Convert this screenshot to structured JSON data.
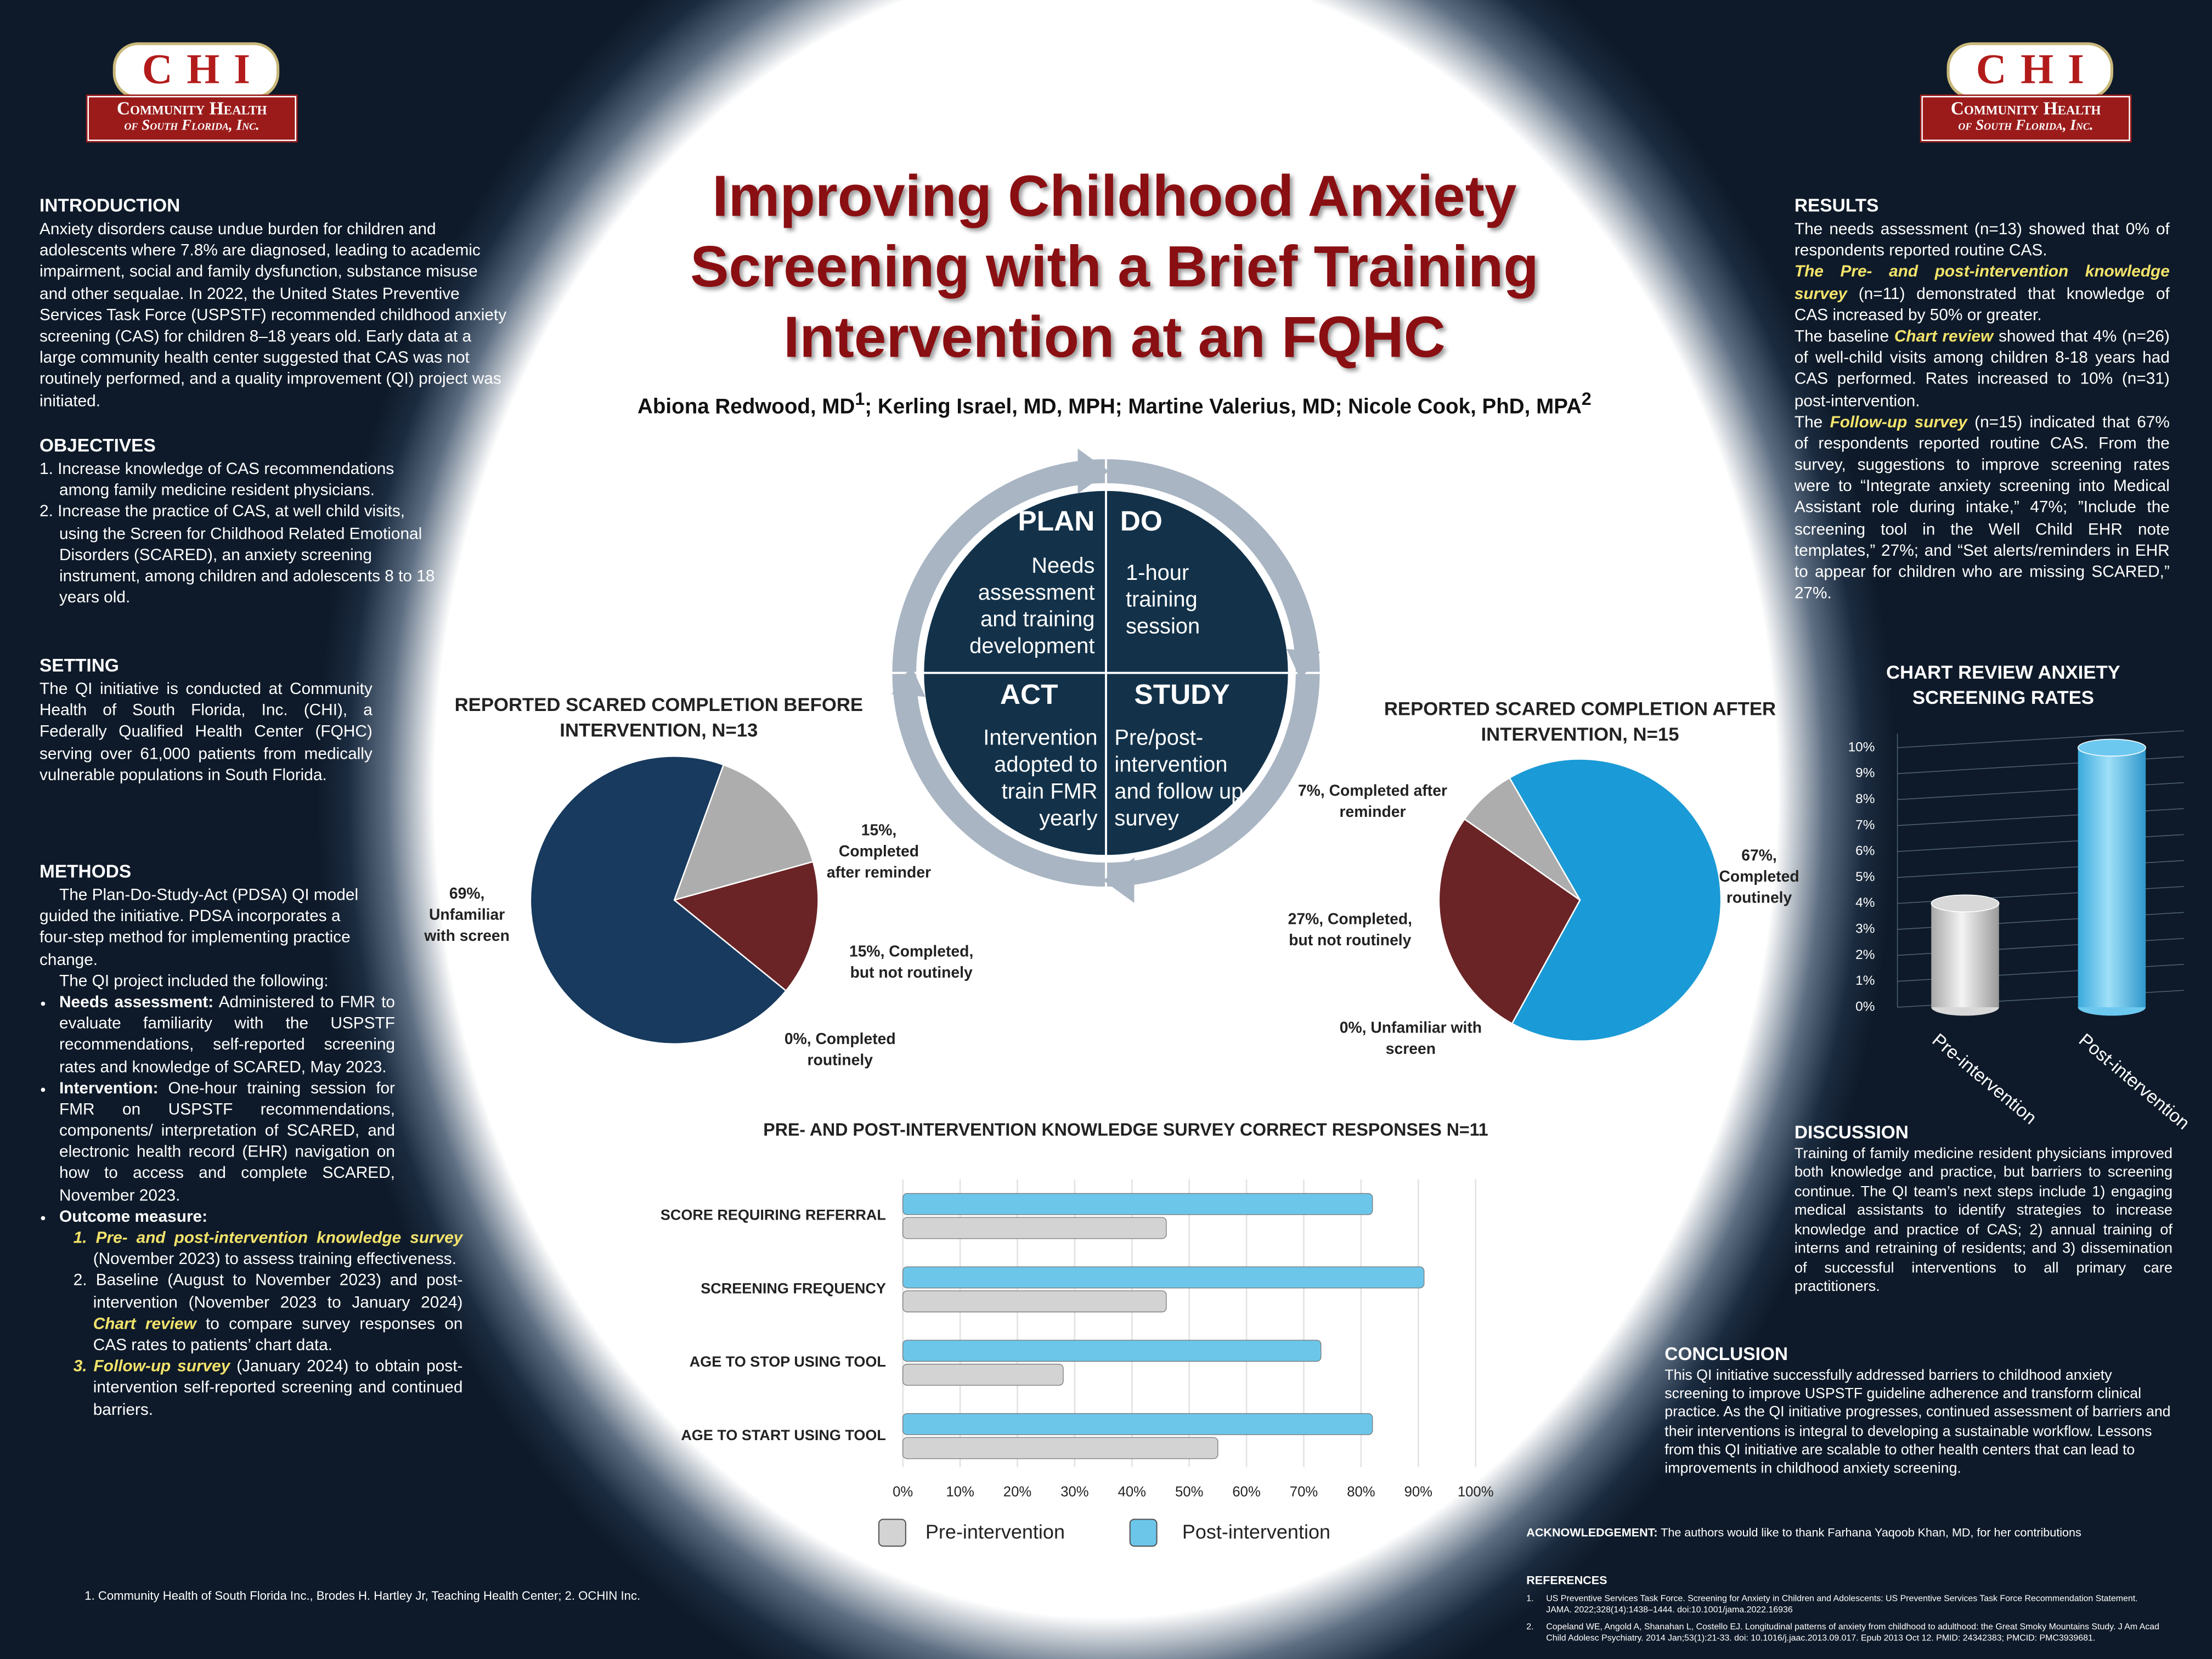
{
  "logo": {
    "initials": "CHI",
    "name": "Community Health",
    "place": "of South Florida, Inc."
  },
  "header": {
    "title": "Improving Childhood Anxiety Screening with a Brief Training Intervention at an FQHC",
    "authors": [
      {
        "text": "Abiona Redwood, MD",
        "sup": "1"
      },
      {
        "text": "; Kerling Israel, MD, MPH; Martine Valerius, MD; Nicole Cook, PhD, MPA",
        "sup": "2"
      }
    ]
  },
  "introduction": {
    "heading": "INTRODUCTION",
    "text": "Anxiety disorders cause undue burden for children and adolescents where 7.8% are diagnosed, leading to academic impairment, social and family dysfunction, substance misuse and other sequalae. In 2022, the United States Preventive Services Task Force (USPSTF) recommended childhood anxiety screening (CAS) for children 8–18 years old. Early data at a large community health center suggested that CAS was not routinely performed, and a quality improvement (QI) project was initiated."
  },
  "objectives": {
    "heading": "OBJECTIVES",
    "items": [
      "1. Increase knowledge of CAS recommendations among family medicine resident physicians.",
      "2. Increase the practice of CAS, at well child visits, using the Screen for Childhood Related Emotional Disorders (SCARED), an anxiety screening instrument, among children and adolescents 8 to 18 years old."
    ]
  },
  "setting": {
    "heading": "SETTING",
    "text": "The QI initiative is conducted at Community Health of South Florida, Inc. (CHI), a Federally Qualified Health Center (FQHC) serving over 61,000 patients from medically vulnerable populations in South Florida."
  },
  "methods": {
    "heading": "METHODS",
    "paragraphs": [
      "The Plan-Do-Study-Act (PDSA) QI model guided the initiative. PDSA incorporates a four-step method for implementing practice change.",
      "The QI project included the following:"
    ],
    "bullets": [
      {
        "bold": "Needs assessment:",
        "text": " Administered to FMR to evaluate familiarity with the USPSTF recommendations, self-reported screening rates and knowledge of SCARED, May 2023."
      },
      {
        "bold": "Intervention:",
        "text": " One-hour training session for FMR on USPSTF recommendations, components/ interpretation of SCARED, and electronic health record (EHR) navigation on how to  access and complete SCARED, November 2023."
      },
      {
        "bold": "Outcome measure:",
        "items": [
          {
            "num": "1.",
            "highlight": "Pre- and post-intervention knowledge survey",
            "after": " (November 2023) to assess training effectiveness."
          },
          {
            "num": "2.",
            "before": "Baseline (August to November 2023) and post-intervention (November 2023 to January 2024) ",
            "highlight": "Chart review",
            "after": " to compare survey responses on CAS rates to patients’ chart data."
          },
          {
            "num": "3.",
            "highlight": "Follow-up survey",
            "after": " (January 2024) to obtain post-intervention self-reported screening and continued barriers."
          }
        ]
      }
    ]
  },
  "pdsa": [
    {
      "label": "PLAN",
      "text": "Needs assessment and training development"
    },
    {
      "label": "DO",
      "text": "1-hour training session"
    },
    {
      "label": "ACT",
      "text": "Intervention adopted to train FMR yearly"
    },
    {
      "label": "STUDY",
      "text": "Pre/post-intervention and follow up survey"
    }
  ],
  "results": {
    "heading": "RESULTS",
    "paragraphs": [
      {
        "before": "The needs assessment (n=13) showed that 0% of respondents reported routine CAS."
      },
      {
        "highlight": "The Pre- and post-intervention knowledge survey",
        "after": " (n=11) demonstrated that knowledge of CAS increased by 50% or greater."
      },
      {
        "before": "The baseline ",
        "highlight": "Chart review",
        "after": "  showed that 4% (n=26) of well-child visits among children 8-18 years had CAS performed. Rates increased to 10% (n=31) post-intervention."
      },
      {
        "before": "The ",
        "highlight": "Follow-up survey",
        "after": " (n=15) indicated that 67% of respondents reported routine CAS. From the survey, suggestions to improve screening rates were to “Integrate anxiety screening into Medical Assistant role during intake,” 47%; ”Include the screening tool in the Well Child EHR note templates,” 27%; and “Set alerts/reminders in EHR to appear for children who are missing SCARED,” 27%."
      }
    ]
  },
  "discussion": {
    "heading": "DISCUSSION",
    "text": "Training of family medicine resident physicians improved both knowledge and practice, but barriers to screening continue. The QI team’s next steps include 1) engaging medical assistants to identify strategies to increase knowledge and practice of CAS; 2) annual training of interns and retraining of residents; and 3) dissemination of successful interventions to all primary care practitioners."
  },
  "conclusion": {
    "heading": "CONCLUSION",
    "text": "This QI initiative successfully addressed barriers to childhood anxiety screening to improve USPSTF guideline adherence and transform clinical practice. As the QI initiative progresses, continued assessment of barriers and their interventions is integral to developing a sustainable workflow. Lessons from this QI initiative are scalable to other health centers that can lead to improvements in childhood anxiety screening."
  },
  "acknowledgement": {
    "label": "ACKNOWLEDGEMENT:",
    "text": " The authors would like to thank Farhana Yaqoob Khan, MD, for her contributions"
  },
  "references": {
    "heading": "REFERENCES",
    "items": [
      {
        "num": "1.",
        "text": "US Preventive Services Task Force. Screening for Anxiety in Children and Adolescents: US Preventive Services Task Force Recommendation Statement. JAMA. 2022;328(14):1438–1444. doi:10.1001/jama.2022.16936"
      },
      {
        "num": "2.",
        "text": "Copeland WE, Angold A, Shanahan L, Costello EJ. Longitudinal patterns of anxiety from childhood to adulthood: the Great Smoky Mountains Study. J Am Acad Child Adolesc Psychiatry. 2014 Jan;53(1):21-33. doi: 10.1016/j.jaac.2013.09.017. Epub 2013 Oct 12. PMID: 24342383; PMCID: PMC3939681."
      }
    ]
  },
  "footnote": "1. Community Health of South Florida Inc., Brodes H. Hartley Jr, Teaching Health Center; 2. OCHIN Inc.",
  "chart_data": [
    {
      "type": "pie",
      "title": "REPORTED SCARED COMPLETION BEFORE INTERVENTION, N=13",
      "labels": [
        "15%, Completed after reminder",
        "15%, Completed, but not routinely",
        "0%, Completed routinely",
        "69%, Unfamiliar with screen"
      ],
      "values": [
        15,
        15,
        0,
        69
      ],
      "colors": [
        "#adadad",
        "#6b2426",
        "#1a9ad6",
        "#173a5e"
      ]
    },
    {
      "type": "pie",
      "title": "REPORTED SCARED COMPLETION AFTER INTERVENTION, N=15",
      "labels": [
        "67%, Completed routinely",
        "0%, Unfamiliar with screen",
        "27%, Completed, but not routinely",
        "7%, Completed after reminder"
      ],
      "values": [
        67,
        0,
        27,
        7
      ],
      "colors": [
        "#1a9ad6",
        "#173a5e",
        "#6b2426",
        "#adadad"
      ]
    },
    {
      "type": "bar",
      "orientation": "horizontal",
      "title": "PRE- AND POST-INTERVENTION KNOWLEDGE SURVEY CORRECT RESPONSES N=11",
      "categories": [
        "SCORE REQUIRING  REFERRAL",
        "SCREENING FREQUENCY",
        "AGE TO STOP USING TOOL",
        "AGE TO START USING TOOL"
      ],
      "series": [
        {
          "name": "Pre-intervention",
          "color": "#d3d3d3",
          "values": [
            46,
            46,
            28,
            55
          ]
        },
        {
          "name": "Post-intervention",
          "color": "#6cc6ea",
          "values": [
            82,
            91,
            73,
            82
          ]
        }
      ],
      "xlim": [
        0,
        100
      ],
      "xticks": [
        {
          "value": 0,
          "label": "0%"
        },
        {
          "value": 10,
          "label": "10%"
        },
        {
          "value": 20,
          "label": "20%"
        },
        {
          "value": 30,
          "label": "30%"
        },
        {
          "value": 40,
          "label": "40%"
        },
        {
          "value": 50,
          "label": "50%"
        },
        {
          "value": 60,
          "label": "60%"
        },
        {
          "value": 70,
          "label": "70%"
        },
        {
          "value": 80,
          "label": "80%"
        },
        {
          "value": 90,
          "label": "90%"
        },
        {
          "value": 100,
          "label": "100%"
        }
      ],
      "grid": true
    },
    {
      "type": "bar",
      "orientation": "vertical",
      "style": "cylinder",
      "title": "CHART REVIEW ANXIETY SCREENING RATES",
      "categories": [
        "Pre-intervention",
        "Post-intervention"
      ],
      "values": [
        4,
        10
      ],
      "colors": [
        "#d8d8d8",
        "#6cc8ef"
      ],
      "ylim": [
        0,
        10
      ],
      "yticks": [
        {
          "value": 0,
          "label": "0%"
        },
        {
          "value": 1,
          "label": "1%"
        },
        {
          "value": 2,
          "label": "2%"
        },
        {
          "value": 3,
          "label": "3%"
        },
        {
          "value": 4,
          "label": "4%"
        },
        {
          "value": 5,
          "label": "5%"
        },
        {
          "value": 6,
          "label": "6%"
        },
        {
          "value": 7,
          "label": "7%"
        },
        {
          "value": 8,
          "label": "8%"
        },
        {
          "value": 9,
          "label": "9%"
        },
        {
          "value": 10,
          "label": "10%"
        }
      ],
      "grid": true
    }
  ]
}
